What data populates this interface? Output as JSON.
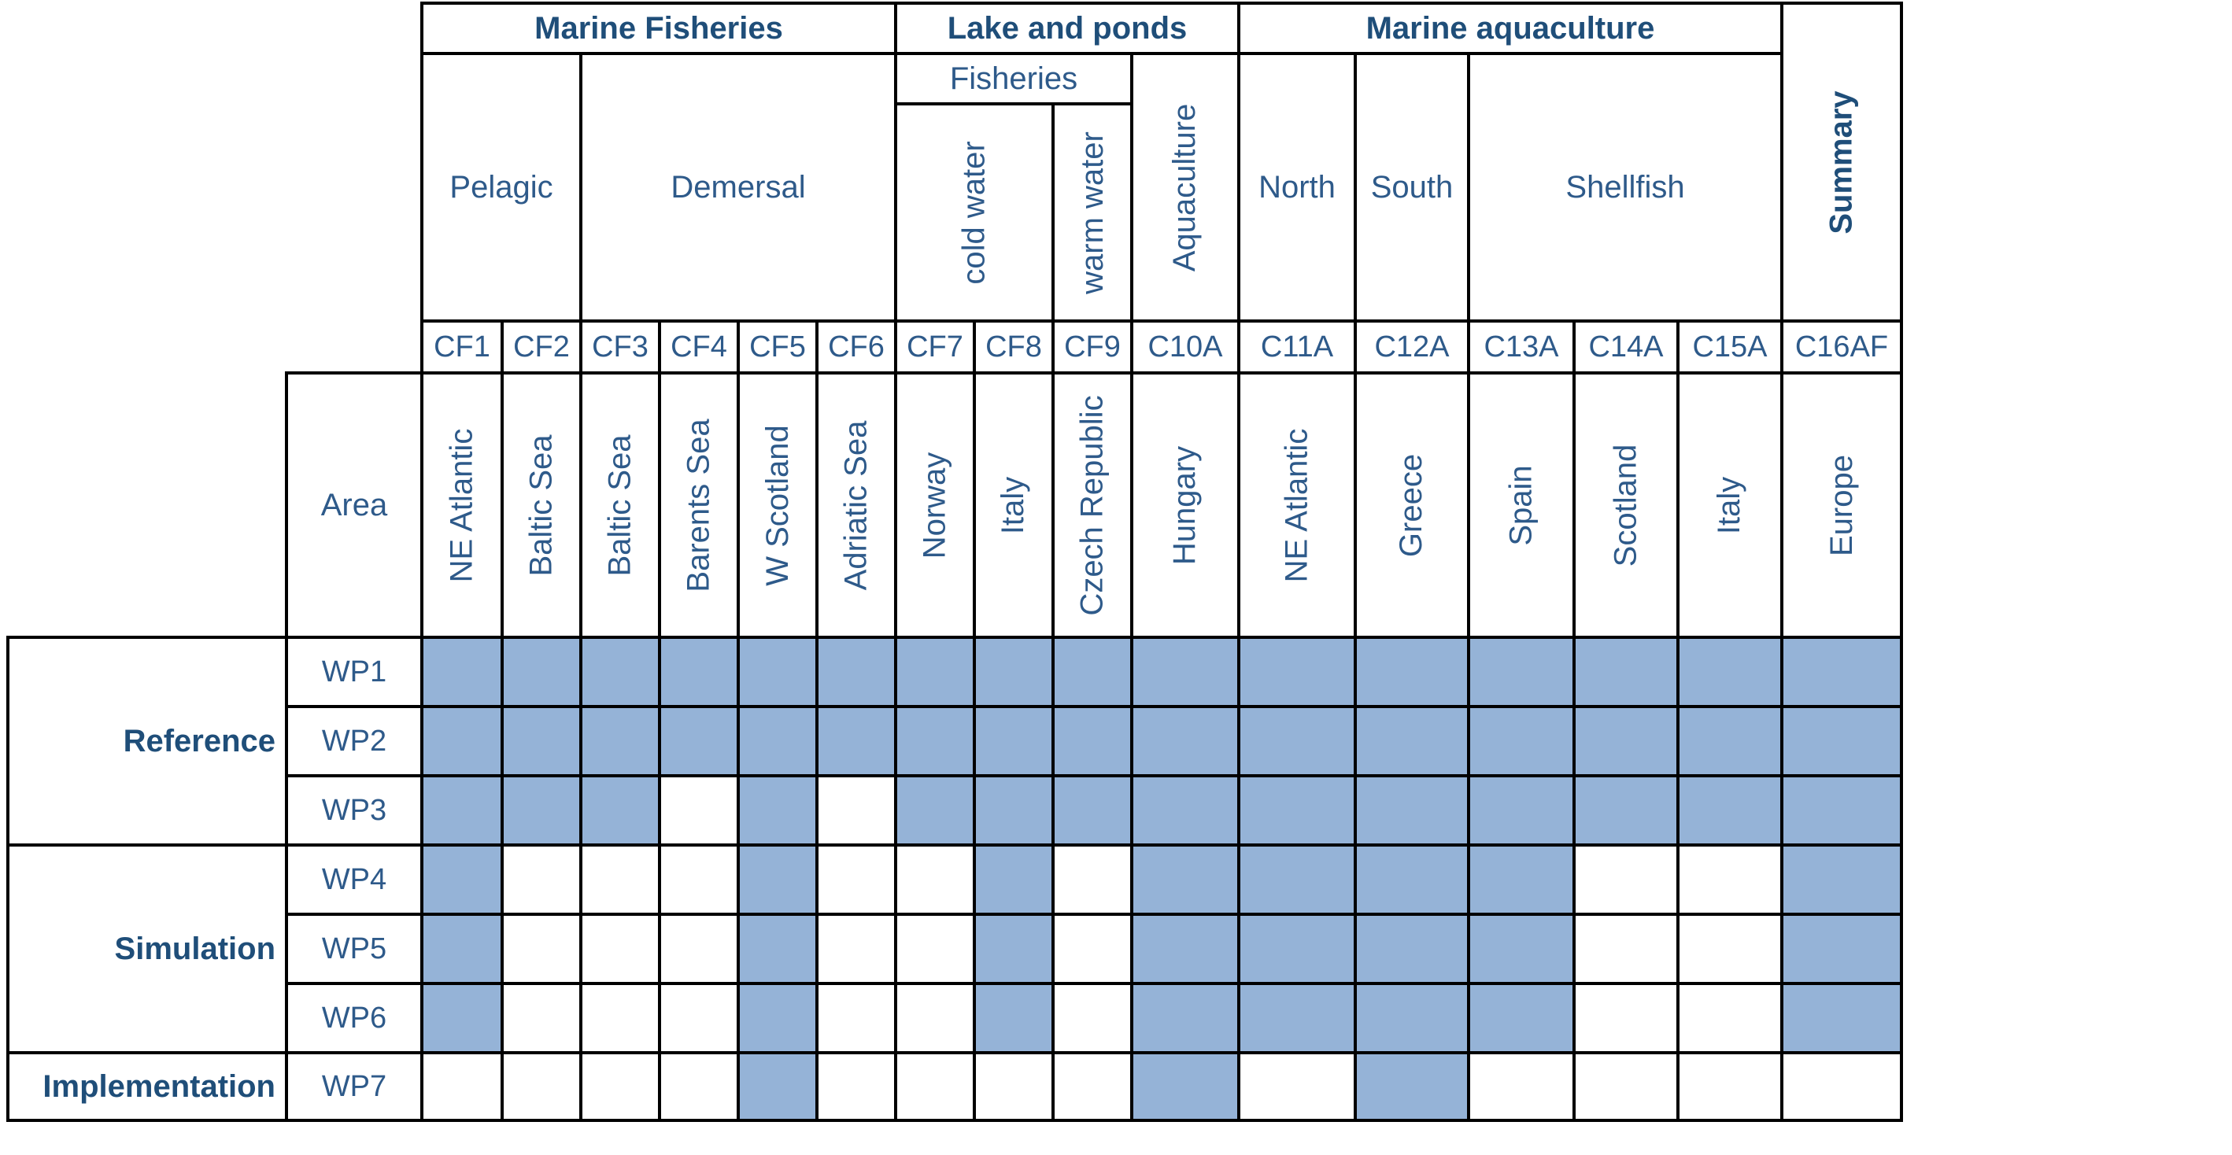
{
  "header": {
    "groups": [
      "Marine Fisheries",
      "Lake and ponds",
      "Marine aquaculture",
      "Summary"
    ],
    "fisheries": "Fisheries",
    "subgroups": [
      "Pelagic",
      "Demersal",
      "cold water",
      "warm water",
      "Aquaculture",
      "North",
      "South",
      "Shellfish"
    ]
  },
  "codes": [
    "CF1",
    "CF2",
    "CF3",
    "CF4",
    "CF5",
    "CF6",
    "CF7",
    "CF8",
    "CF9",
    "C10A",
    "C11A",
    "C12A",
    "C13A",
    "C14A",
    "C15A",
    "C16AF"
  ],
  "area_label": "Area",
  "areas": [
    "NE Atlantic",
    "Baltic Sea",
    "Baltic Sea",
    "Barents Sea",
    "W Scotland",
    "Adriatic Sea",
    "Norway",
    "Italy",
    "Czech Republic",
    "Hungary",
    "NE Atlantic",
    "Greece",
    "Spain",
    "Scotland",
    "Italy",
    "Europe"
  ],
  "row_groups": [
    "Reference",
    "Simulation",
    "Implementation"
  ],
  "wps": [
    "WP1",
    "WP2",
    "WP3",
    "WP4",
    "WP5",
    "WP6",
    "WP7"
  ],
  "colors": {
    "fill": "#95b3d7",
    "text": "#2e5a8a",
    "heading": "#1f4e79",
    "border": "#000000"
  },
  "matrix": [
    [
      1,
      1,
      1,
      1,
      1,
      1,
      1,
      1,
      1,
      1,
      1,
      1,
      1,
      1,
      1,
      1
    ],
    [
      1,
      1,
      1,
      1,
      1,
      1,
      1,
      1,
      1,
      1,
      1,
      1,
      1,
      1,
      1,
      1
    ],
    [
      1,
      1,
      1,
      0,
      1,
      0,
      1,
      1,
      1,
      1,
      1,
      1,
      1,
      1,
      1,
      1
    ],
    [
      1,
      0,
      0,
      0,
      1,
      0,
      0,
      1,
      0,
      1,
      1,
      1,
      1,
      0,
      0,
      1
    ],
    [
      1,
      0,
      0,
      0,
      1,
      0,
      0,
      1,
      0,
      1,
      1,
      1,
      1,
      0,
      0,
      1
    ],
    [
      1,
      0,
      0,
      0,
      1,
      0,
      0,
      1,
      0,
      1,
      1,
      1,
      1,
      0,
      0,
      1
    ],
    [
      0,
      0,
      0,
      0,
      1,
      0,
      0,
      0,
      0,
      1,
      0,
      1,
      0,
      0,
      0,
      0
    ]
  ]
}
